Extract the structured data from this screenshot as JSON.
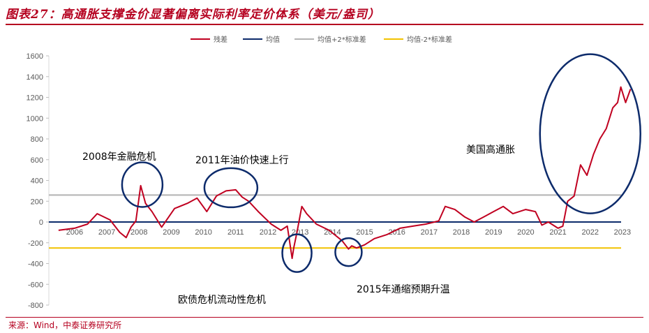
{
  "title": "图表27：高通胀支撑金价显著偏离实际利率定价体系（美元/盎司）",
  "source": "来源：Wind，中泰证券研究所",
  "chart_data": {
    "type": "line",
    "ylim": [
      -800,
      1600
    ],
    "yticks": [
      1600,
      1400,
      1200,
      1000,
      800,
      600,
      400,
      200,
      0,
      -200,
      -400,
      -600,
      -800
    ],
    "xticks": [
      "2006",
      "2007",
      "2008",
      "2009",
      "2010",
      "2011",
      "2012",
      "2013",
      "2014",
      "2015",
      "2016",
      "2017",
      "2018",
      "2019",
      "2020",
      "2021",
      "2022",
      "2023"
    ],
    "legend": [
      {
        "name": "残差",
        "color": "#c00020"
      },
      {
        "name": "均值",
        "color": "#0d2b6b"
      },
      {
        "name": "均值+2*标准差",
        "color": "#b3b3b3"
      },
      {
        "name": "均值-2*标准差",
        "color": "#f2c200"
      }
    ],
    "mean": 0,
    "upper_band": 260,
    "lower_band": -250,
    "series": [
      {
        "name": "残差",
        "x": [
          2006.0,
          2006.5,
          2006.9,
          2007.2,
          2007.6,
          2007.9,
          2008.1,
          2008.25,
          2008.4,
          2008.55,
          2008.7,
          2008.9,
          2009.2,
          2009.6,
          2010.0,
          2010.3,
          2010.6,
          2010.9,
          2011.2,
          2011.5,
          2011.7,
          2011.9,
          2012.2,
          2012.6,
          2012.9,
          2013.1,
          2013.25,
          2013.3,
          2013.4,
          2013.55,
          2013.7,
          2014.0,
          2014.4,
          2014.8,
          2015.0,
          2015.1,
          2015.25,
          2015.5,
          2015.8,
          2016.2,
          2016.6,
          2017.0,
          2017.4,
          2017.8,
          2018.0,
          2018.3,
          2018.6,
          2018.9,
          2019.2,
          2019.5,
          2019.8,
          2020.1,
          2020.5,
          2020.8,
          2021.0,
          2021.2,
          2021.5,
          2021.65,
          2021.8,
          2022.0,
          2022.2,
          2022.4,
          2022.6,
          2022.8,
          2023.0,
          2023.2,
          2023.35,
          2023.45,
          2023.6,
          2023.75
        ],
        "values": [
          -80,
          -60,
          -20,
          80,
          20,
          -100,
          -150,
          -50,
          10,
          350,
          180,
          100,
          -50,
          130,
          180,
          230,
          100,
          250,
          300,
          310,
          240,
          200,
          100,
          -20,
          -80,
          -40,
          -350,
          -250,
          -100,
          150,
          80,
          -20,
          -80,
          -180,
          -260,
          -230,
          -250,
          -220,
          -160,
          -120,
          -60,
          -40,
          -20,
          10,
          150,
          120,
          50,
          0,
          50,
          100,
          150,
          80,
          120,
          100,
          -30,
          0,
          -60,
          -40,
          200,
          250,
          550,
          450,
          650,
          800,
          900,
          1100,
          1150,
          1300,
          1150,
          1280
        ]
      }
    ],
    "annotations": [
      {
        "text": "2008年金融危机",
        "x": 2008.6,
        "y": 360
      },
      {
        "text": "2011年油价快速上行",
        "x": 2011.35,
        "y": 330
      },
      {
        "text": "欧债危机流动性危机",
        "x": 2013.4,
        "y": -300
      },
      {
        "text": "2015年通缩预期升温",
        "x": 2015.0,
        "y": -290
      },
      {
        "text": "美国高通胀",
        "x": 2022.5,
        "y": 850
      }
    ]
  }
}
